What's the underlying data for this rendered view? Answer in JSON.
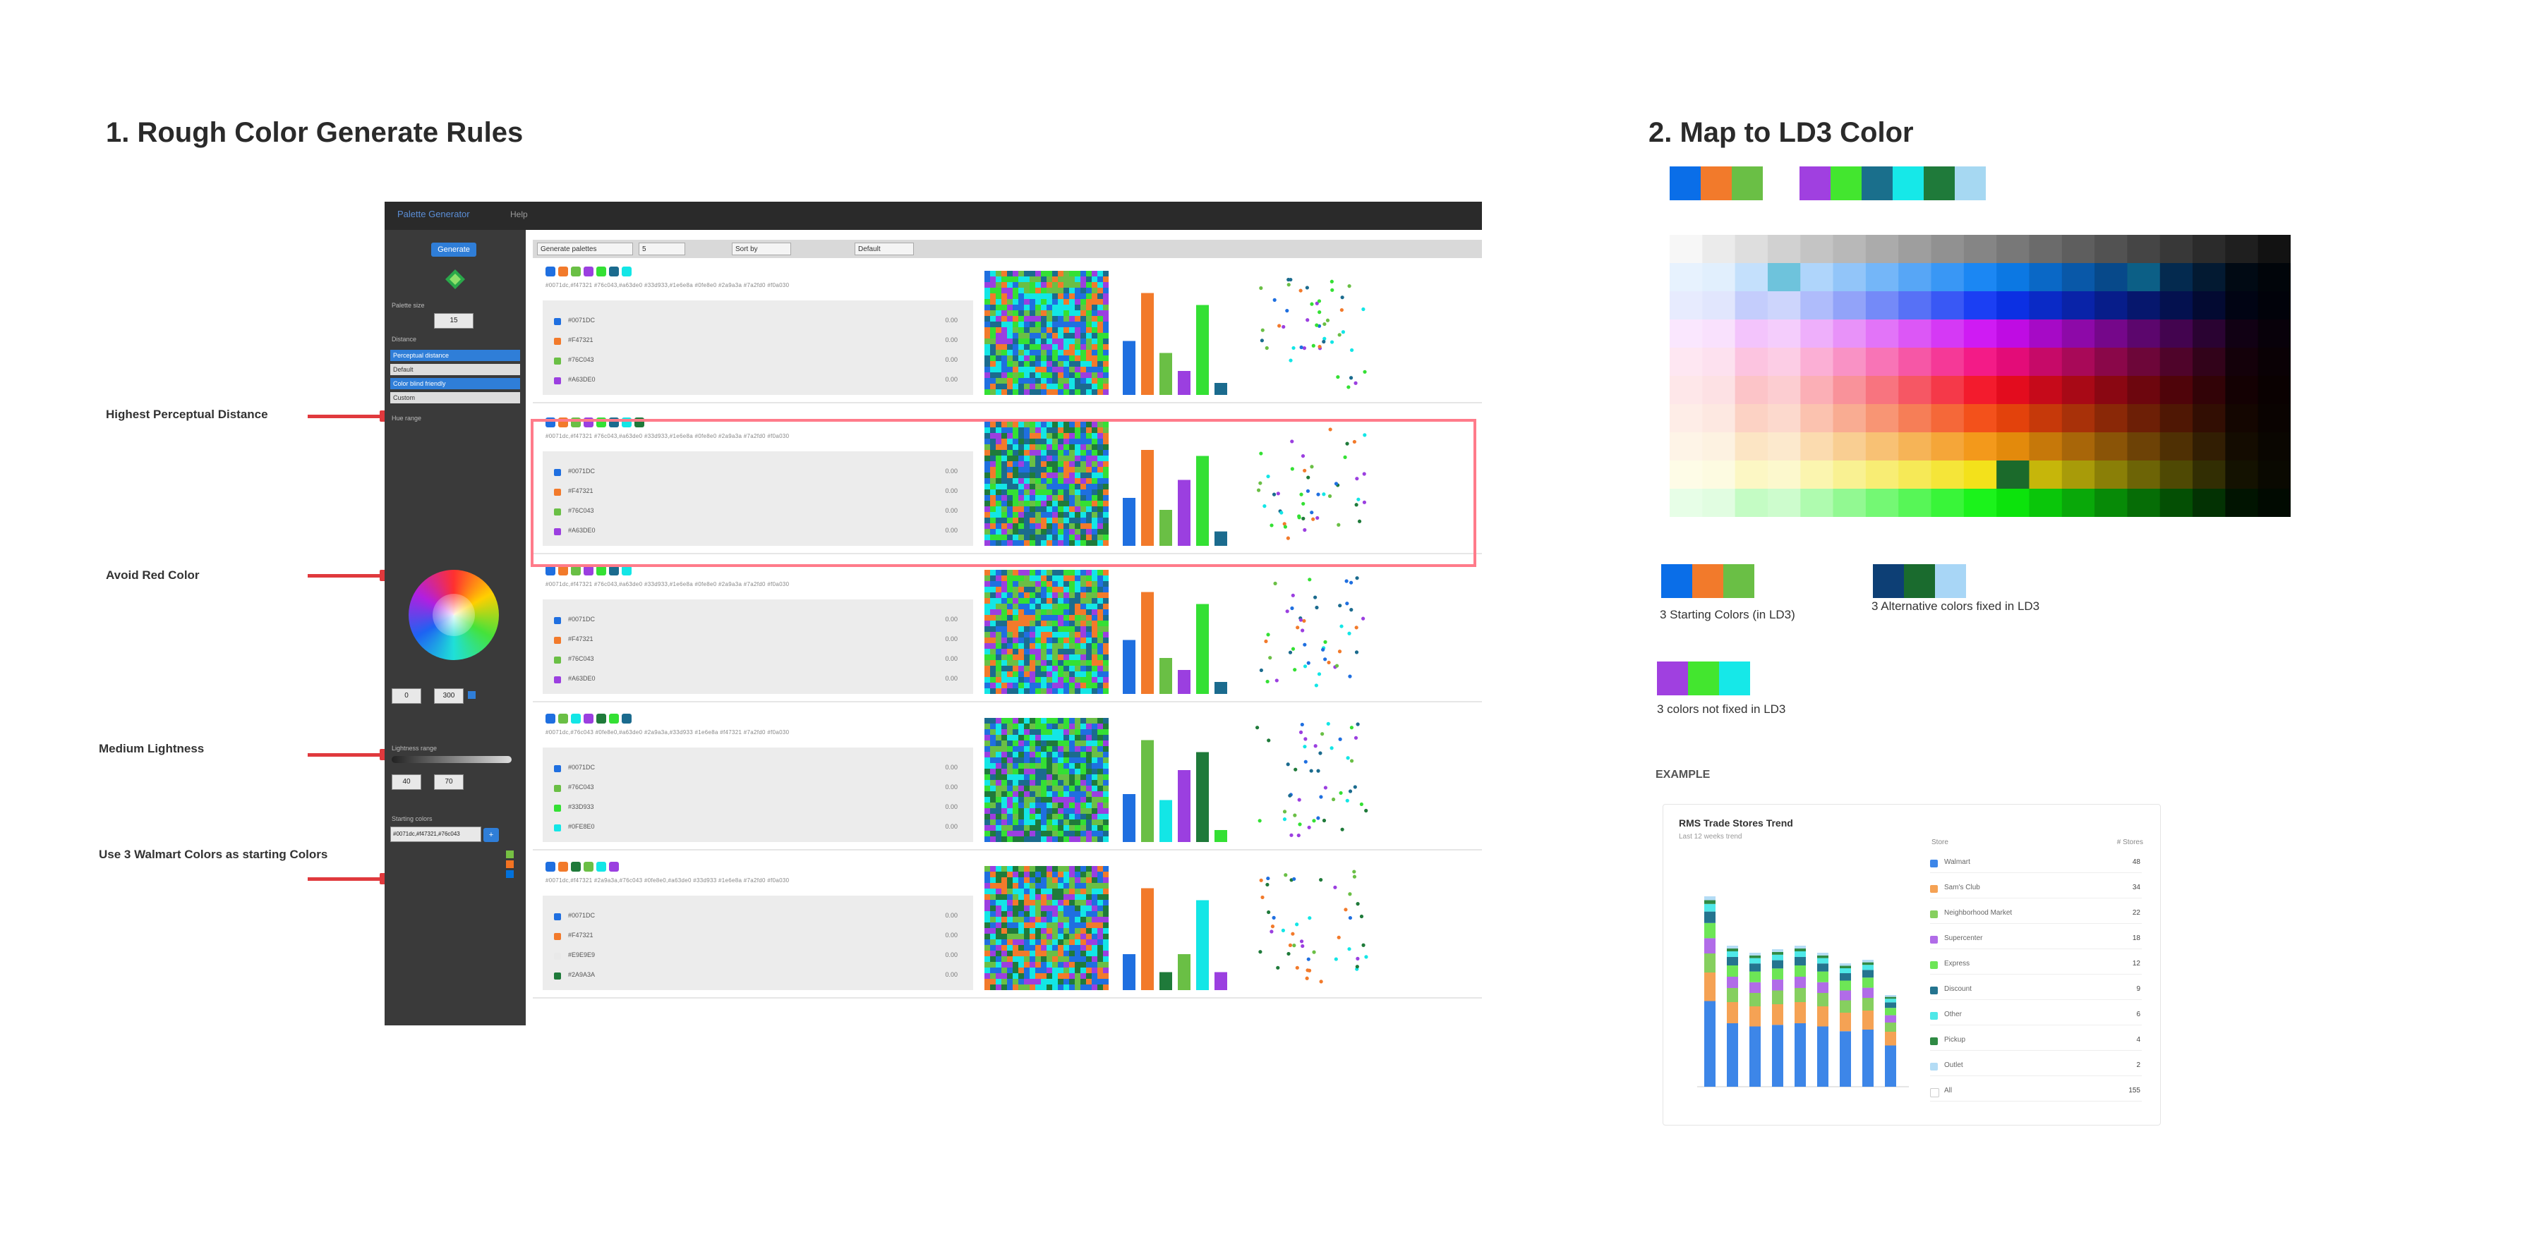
{
  "section1": {
    "title": "1. Rough Color Generate Rules",
    "annotations": [
      "Highest Perceptual Distance",
      "Avoid Red Color",
      "Medium Lightness",
      "Use 3 Walmart Colors as starting Colors"
    ]
  },
  "app": {
    "title": "Palette Generator",
    "menu": "Help",
    "sidebar": {
      "generate_button": "Generate",
      "palette_size_label": "Palette size",
      "palette_size_value": "15",
      "distance_label": "Distance",
      "distance_options": [
        "Perceptual distance",
        "Default",
        "Color blind friendly",
        "Custom"
      ],
      "hue_label": "Hue range",
      "hue_from": "0",
      "hue_to": "300",
      "lightness_label": "Lightness range",
      "lightness_from": "40",
      "lightness_to": "70",
      "starting_label": "Starting colors",
      "starting_value": "#0071dc,#f47321,#76c043",
      "add_button": "+"
    },
    "toolbar": {
      "field1": "Generate palettes",
      "field2": "5",
      "field3": "Sort by",
      "field4": "Default"
    },
    "rows": [
      {
        "swatches": [
          "#1f6fe0",
          "#f27a2b",
          "#6abf45",
          "#9b3fe0",
          "#34e034",
          "#1b6b8e",
          "#13e6e6"
        ],
        "hex": "#0071dc,#f47321 #76c043,#a63de0 #33d933,#1e6e8a #0fe8e0 #2a9a3a #7a2fd0 #f0a030",
        "items": [
          {
            "name": "#0071DC",
            "value": "0.00",
            "color": "#1f6fe0"
          },
          {
            "name": "#F47321",
            "value": "0.00",
            "color": "#f27a2b"
          },
          {
            "name": "#76C043",
            "value": "0.00",
            "color": "#6abf45"
          },
          {
            "name": "#A63DE0",
            "value": "0.00",
            "color": "#9b3fe0"
          }
        ]
      },
      {
        "swatches": [
          "#1f6fe0",
          "#f27a2b",
          "#6abf45",
          "#9b3fe0",
          "#34e034",
          "#1b6b8e",
          "#13e6e6",
          "#1f7a3a"
        ],
        "hex": "#0071dc,#f47321 #76c043,#a63de0 #33d933,#1e6e8a #0fe8e0 #2a9a3a #7a2fd0 #f0a030",
        "items": [
          {
            "name": "#0071DC",
            "value": "0.00",
            "color": "#1f6fe0"
          },
          {
            "name": "#F47321",
            "value": "0.00",
            "color": "#f27a2b"
          },
          {
            "name": "#76C043",
            "value": "0.00",
            "color": "#6abf45"
          },
          {
            "name": "#A63DE0",
            "value": "0.00",
            "color": "#9b3fe0"
          }
        ]
      },
      {
        "swatches": [
          "#1f6fe0",
          "#f27a2b",
          "#6abf45",
          "#9b3fe0",
          "#34e034",
          "#1b6b8e",
          "#13e6e6"
        ],
        "hex": "#0071dc,#f47321 #76c043,#a63de0 #33d933,#1e6e8a #0fe8e0 #2a9a3a #7a2fd0 #f0a030",
        "items": [
          {
            "name": "#0071DC",
            "value": "0.00",
            "color": "#1f6fe0"
          },
          {
            "name": "#F47321",
            "value": "0.00",
            "color": "#f27a2b"
          },
          {
            "name": "#76C043",
            "value": "0.00",
            "color": "#6abf45"
          },
          {
            "name": "#A63DE0",
            "value": "0.00",
            "color": "#9b3fe0"
          }
        ]
      },
      {
        "swatches": [
          "#1f6fe0",
          "#6abf45",
          "#13e6e6",
          "#9b3fe0",
          "#1f7a3a",
          "#34e034",
          "#1b6b8e"
        ],
        "hex": "#0071dc,#76c043 #0fe8e0,#a63de0 #2a9a3a,#33d933 #1e6e8a #f47321 #7a2fd0 #f0a030",
        "items": [
          {
            "name": "#0071DC",
            "value": "0.00",
            "color": "#1f6fe0"
          },
          {
            "name": "#76C043",
            "value": "0.00",
            "color": "#6abf45"
          },
          {
            "name": "#33D933",
            "value": "0.00",
            "color": "#34e034"
          },
          {
            "name": "#0FE8E0",
            "value": "0.00",
            "color": "#13e6e6"
          }
        ]
      },
      {
        "swatches": [
          "#1f6fe0",
          "#f27a2b",
          "#1f7a3a",
          "#6abf45",
          "#13e6e6",
          "#9b3fe0"
        ],
        "hex": "#0071dc,#f47321 #2a9a3a,#76c043 #0fe8e0,#a63de0 #33d933 #1e6e8a #7a2fd0 #f0a030",
        "items": [
          {
            "name": "#0071DC",
            "value": "0.00",
            "color": "#1f6fe0"
          },
          {
            "name": "#F47321",
            "value": "0.00",
            "color": "#f27a2b"
          },
          {
            "name": "#E9E9E9",
            "value": "0.00",
            "color": "#e9e9e9"
          },
          {
            "name": "#2A9A3A",
            "value": "0.00",
            "color": "#1f7a3a"
          }
        ]
      }
    ]
  },
  "section2": {
    "title": "2. Map to LD3 Color",
    "palette_group_a": [
      "#0a6ee8",
      "#f27a2b",
      "#6abf45"
    ],
    "palette_group_b": [
      "#a040e0",
      "#43e62f",
      "#1a6f8c",
      "#16e8e8",
      "#1f7a3a",
      "#a6d8f2"
    ],
    "captions": {
      "starting": "3 Starting Colors (in LD3)",
      "alternative": "3 Alternative colors fixed in LD3",
      "not_fixed": "3 colors not fixed in LD3"
    },
    "starting_swatches": [
      "#0a6ee8",
      "#f27a2b",
      "#6abf45"
    ],
    "alternative_swatches": [
      "#0d3f75",
      "#1a6b2e",
      "#a8d6f6"
    ],
    "not_fixed_swatches": [
      "#a040e0",
      "#43e62f",
      "#16e8e8"
    ],
    "example_label": "EXAMPLE",
    "example": {
      "title": "RMS Trade Stores Trend",
      "subtitle": "Last 12 weeks trend",
      "legend_head_left": "Store",
      "legend_head_right": "# Stores",
      "legend": [
        {
          "name": "Walmart",
          "value": "48",
          "color": "#3d86e8"
        },
        {
          "name": "Sam's Club",
          "value": "34",
          "color": "#f5a254"
        },
        {
          "name": "Neighborhood Market",
          "value": "22",
          "color": "#86cf5f"
        },
        {
          "name": "Supercenter",
          "value": "18",
          "color": "#b16ce8"
        },
        {
          "name": "Express",
          "value": "12",
          "color": "#6de656"
        },
        {
          "name": "Discount",
          "value": "9",
          "color": "#24748f"
        },
        {
          "name": "Other",
          "value": "6",
          "color": "#4fe8e8"
        },
        {
          "name": "Pickup",
          "value": "4",
          "color": "#2f8a44"
        },
        {
          "name": "Outlet",
          "value": "2",
          "color": "#b4dcf5"
        },
        {
          "name": "All",
          "value": "155",
          "color": "#ffffff"
        }
      ]
    }
  },
  "colors": {
    "accent_red": "#e0393d",
    "highlight": "#ff7b8a",
    "sidebar_bg": "#3a3a3a",
    "app_blue": "#2f7ed8"
  },
  "icons": [
    "color-wheel-icon",
    "logo-icon"
  ]
}
